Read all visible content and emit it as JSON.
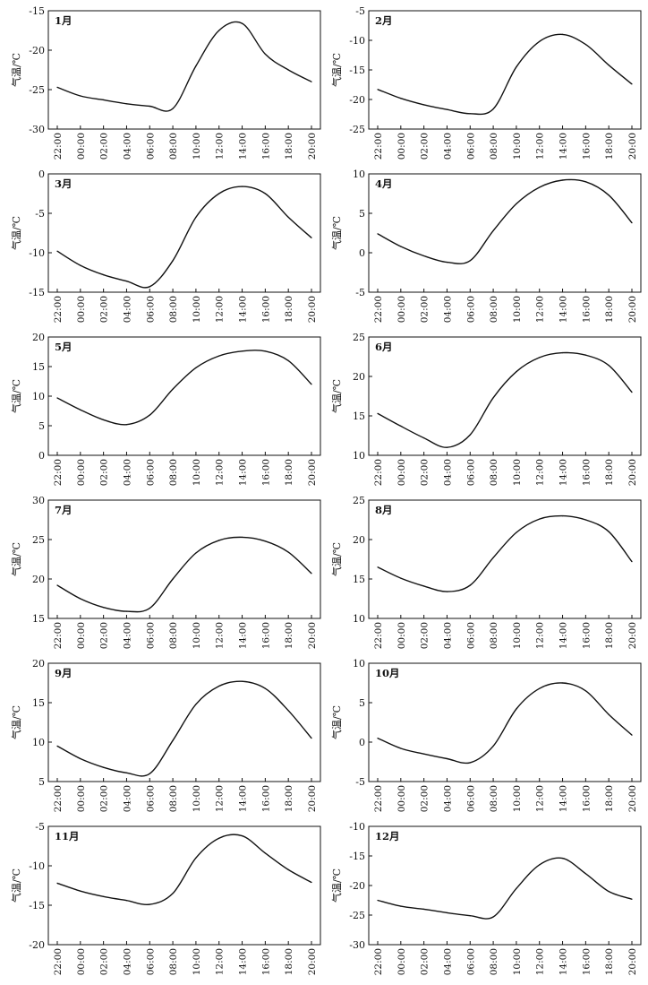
{
  "chart_data": [
    {
      "type": "line",
      "title": "1月",
      "ylabel": "气温/℃",
      "ylim": [
        -30,
        -15
      ],
      "yticks": [
        -15,
        -20,
        -25,
        -30
      ],
      "x": [
        "22:00",
        "00:00",
        "02:00",
        "04:00",
        "06:00",
        "08:00",
        "10:00",
        "12:00",
        "14:00",
        "16:00",
        "18:00",
        "20:00"
      ],
      "series": [
        {
          "values": [
            -24.7,
            -25.8,
            -26.3,
            -26.8,
            -27.1,
            -27.4,
            -22.0,
            -17.5,
            -16.6,
            -20.5,
            -22.5,
            -24.0
          ]
        }
      ],
      "grid": false
    },
    {
      "type": "line",
      "title": "2月",
      "ylabel": "气温/℃",
      "ylim": [
        -25,
        -5
      ],
      "yticks": [
        -5,
        -10,
        -15,
        -20,
        -25
      ],
      "x": [
        "22:00",
        "00:00",
        "02:00",
        "04:00",
        "06:00",
        "08:00",
        "10:00",
        "12:00",
        "14:00",
        "16:00",
        "18:00",
        "20:00"
      ],
      "series": [
        {
          "values": [
            -18.3,
            -19.8,
            -20.9,
            -21.7,
            -22.4,
            -21.6,
            -14.5,
            -10.2,
            -9.0,
            -10.7,
            -14.2,
            -17.4
          ]
        }
      ],
      "grid": false
    },
    {
      "type": "line",
      "title": "3月",
      "ylabel": "气温/℃",
      "ylim": [
        -15,
        0
      ],
      "yticks": [
        0,
        -5,
        -10,
        -15
      ],
      "x": [
        "22:00",
        "00:00",
        "02:00",
        "04:00",
        "06:00",
        "08:00",
        "10:00",
        "12:00",
        "14:00",
        "16:00",
        "18:00",
        "20:00"
      ],
      "series": [
        {
          "values": [
            -9.8,
            -11.6,
            -12.8,
            -13.6,
            -14.3,
            -11.0,
            -5.5,
            -2.5,
            -1.6,
            -2.5,
            -5.5,
            -8.1
          ]
        }
      ],
      "grid": false
    },
    {
      "type": "line",
      "title": "4月",
      "ylabel": "气温/℃",
      "ylim": [
        -5,
        10
      ],
      "yticks": [
        10,
        5,
        0,
        -5
      ],
      "x": [
        "22:00",
        "00:00",
        "02:00",
        "04:00",
        "06:00",
        "08:00",
        "10:00",
        "12:00",
        "14:00",
        "16:00",
        "18:00",
        "20:00"
      ],
      "series": [
        {
          "values": [
            2.4,
            0.8,
            -0.4,
            -1.2,
            -1.0,
            2.8,
            6.2,
            8.3,
            9.2,
            9.0,
            7.3,
            3.8
          ]
        }
      ],
      "grid": false
    },
    {
      "type": "line",
      "title": "5月",
      "ylabel": "气温/℃",
      "ylim": [
        0,
        20
      ],
      "yticks": [
        20,
        15,
        10,
        5,
        0
      ],
      "x": [
        "22:00",
        "00:00",
        "02:00",
        "04:00",
        "06:00",
        "08:00",
        "10:00",
        "12:00",
        "14:00",
        "16:00",
        "18:00",
        "20:00"
      ],
      "series": [
        {
          "values": [
            9.7,
            7.7,
            6.0,
            5.2,
            6.8,
            11.2,
            14.8,
            16.8,
            17.6,
            17.6,
            16.0,
            12.0
          ]
        }
      ],
      "grid": false
    },
    {
      "type": "line",
      "title": "6月",
      "ylabel": "气温/℃",
      "ylim": [
        10,
        25
      ],
      "yticks": [
        25,
        20,
        15,
        10
      ],
      "x": [
        "22:00",
        "00:00",
        "02:00",
        "04:00",
        "06:00",
        "08:00",
        "10:00",
        "12:00",
        "14:00",
        "16:00",
        "18:00",
        "20:00"
      ],
      "series": [
        {
          "values": [
            15.3,
            13.7,
            12.2,
            11.0,
            12.6,
            17.3,
            20.6,
            22.4,
            23.0,
            22.7,
            21.4,
            18.0
          ]
        }
      ],
      "grid": false
    },
    {
      "type": "line",
      "title": "7月",
      "ylabel": "气温/℃",
      "ylim": [
        15,
        30
      ],
      "yticks": [
        30,
        25,
        20,
        15
      ],
      "x": [
        "22:00",
        "00:00",
        "02:00",
        "04:00",
        "06:00",
        "08:00",
        "10:00",
        "12:00",
        "14:00",
        "16:00",
        "18:00",
        "20:00"
      ],
      "series": [
        {
          "values": [
            19.2,
            17.5,
            16.4,
            15.9,
            16.3,
            20.0,
            23.3,
            24.9,
            25.3,
            24.8,
            23.4,
            20.7
          ]
        }
      ],
      "grid": false
    },
    {
      "type": "line",
      "title": "8月",
      "ylabel": "气温/℃",
      "ylim": [
        10,
        25
      ],
      "yticks": [
        25,
        20,
        15,
        10
      ],
      "x": [
        "22:00",
        "00:00",
        "02:00",
        "04:00",
        "06:00",
        "08:00",
        "10:00",
        "12:00",
        "14:00",
        "16:00",
        "18:00",
        "20:00"
      ],
      "series": [
        {
          "values": [
            16.5,
            15.1,
            14.1,
            13.4,
            14.2,
            17.7,
            20.9,
            22.6,
            23.0,
            22.5,
            21.0,
            17.2
          ]
        }
      ],
      "grid": false
    },
    {
      "type": "line",
      "title": "9月",
      "ylabel": "气温/℃",
      "ylim": [
        5,
        20
      ],
      "yticks": [
        20,
        15,
        10,
        5
      ],
      "x": [
        "22:00",
        "00:00",
        "02:00",
        "04:00",
        "06:00",
        "08:00",
        "10:00",
        "12:00",
        "14:00",
        "16:00",
        "18:00",
        "20:00"
      ],
      "series": [
        {
          "values": [
            9.5,
            7.9,
            6.8,
            6.1,
            6.0,
            10.2,
            14.8,
            17.1,
            17.7,
            16.8,
            14.0,
            10.5
          ]
        }
      ],
      "grid": false
    },
    {
      "type": "line",
      "title": "10月",
      "ylabel": "气温/℃",
      "ylim": [
        -5,
        10
      ],
      "yticks": [
        10,
        5,
        0,
        -5
      ],
      "x": [
        "22:00",
        "00:00",
        "02:00",
        "04:00",
        "06:00",
        "08:00",
        "10:00",
        "12:00",
        "14:00",
        "16:00",
        "18:00",
        "20:00"
      ],
      "series": [
        {
          "values": [
            0.5,
            -0.8,
            -1.5,
            -2.1,
            -2.6,
            -0.5,
            4.2,
            6.8,
            7.5,
            6.5,
            3.5,
            0.9
          ]
        }
      ],
      "grid": false
    },
    {
      "type": "line",
      "title": "11月",
      "ylabel": "气温/℃",
      "ylim": [
        -20,
        -5
      ],
      "yticks": [
        -5,
        -10,
        -15,
        -20
      ],
      "x": [
        "22:00",
        "00:00",
        "02:00",
        "04:00",
        "06:00",
        "08:00",
        "10:00",
        "12:00",
        "14:00",
        "16:00",
        "18:00",
        "20:00"
      ],
      "series": [
        {
          "values": [
            -12.2,
            -13.2,
            -13.9,
            -14.4,
            -14.9,
            -13.5,
            -9.0,
            -6.5,
            -6.2,
            -8.4,
            -10.5,
            -12.1
          ]
        }
      ],
      "grid": false
    },
    {
      "type": "line",
      "title": "12月",
      "ylabel": "气温/℃",
      "ylim": [
        -30,
        -10
      ],
      "yticks": [
        -10,
        -15,
        -20,
        -25,
        -30
      ],
      "x": [
        "22:00",
        "00:00",
        "02:00",
        "04:00",
        "06:00",
        "08:00",
        "10:00",
        "12:00",
        "14:00",
        "16:00",
        "18:00",
        "20:00"
      ],
      "series": [
        {
          "values": [
            -22.5,
            -23.5,
            -24.0,
            -24.6,
            -25.1,
            -25.3,
            -20.5,
            -16.5,
            -15.4,
            -18.0,
            -21.0,
            -22.3
          ]
        }
      ],
      "grid": false
    }
  ]
}
